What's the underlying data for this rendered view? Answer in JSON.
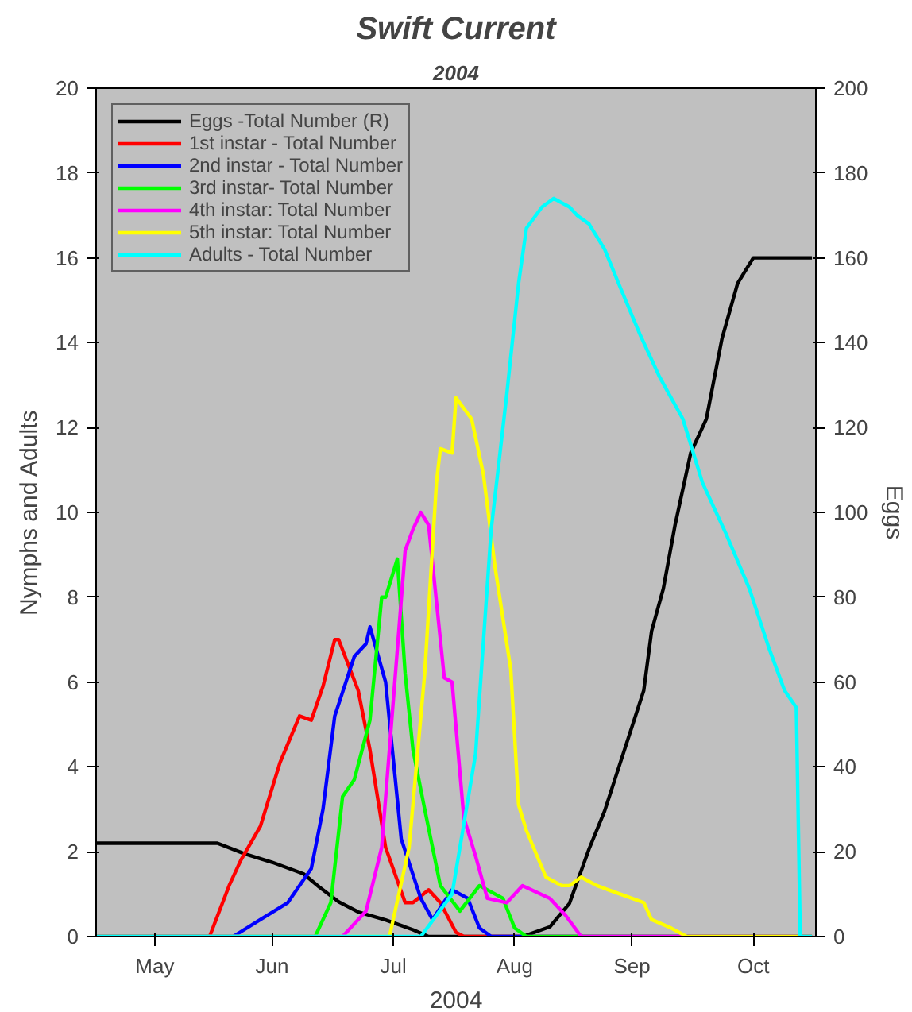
{
  "chart_data": {
    "type": "line",
    "title": "Swift Current",
    "subtitle": "2004",
    "xlabel": "2004",
    "ylabel": "Nymphs and Adults",
    "y2label": "Eggs",
    "xlim": [
      "2004-05-01",
      "2004-11-01"
    ],
    "xticks": [
      {
        "value": "2004-05-16",
        "label": "May"
      },
      {
        "value": "2004-06-15",
        "label": "Jun"
      },
      {
        "value": "2004-07-16",
        "label": "Jul"
      },
      {
        "value": "2004-08-16",
        "label": "Aug"
      },
      {
        "value": "2004-09-15",
        "label": "Sep"
      },
      {
        "value": "2004-10-16",
        "label": "Oct"
      }
    ],
    "ylim": [
      0,
      20
    ],
    "yticks": [
      0,
      2,
      4,
      6,
      8,
      10,
      12,
      14,
      16,
      18,
      20
    ],
    "y2lim": [
      0,
      200
    ],
    "y2ticks": [
      0,
      20,
      40,
      60,
      80,
      100,
      120,
      140,
      160,
      180,
      200
    ],
    "grid": false,
    "legend": "top left",
    "marker": "none",
    "line_style": "solid",
    "series": [
      {
        "name": "Eggs -Total Number (R)",
        "color": "#000000",
        "axis": "y2",
        "x": [
          "2004-05-01",
          "2004-06-01",
          "2004-06-08",
          "2004-06-15",
          "2004-06-23",
          "2004-06-27",
          "2004-07-02",
          "2004-07-07",
          "2004-07-14",
          "2004-07-21",
          "2004-07-25",
          "2004-08-18",
          "2004-08-25",
          "2004-08-30",
          "2004-09-04",
          "2004-09-08",
          "2004-09-12",
          "2004-09-18",
          "2004-09-20",
          "2004-09-23",
          "2004-09-26",
          "2004-09-30",
          "2004-10-04",
          "2004-10-08",
          "2004-10-12",
          "2004-10-16",
          "2004-10-31"
        ],
        "values": [
          22,
          22,
          19.5,
          17.5,
          14.8,
          11.7,
          8.2,
          5.8,
          3.9,
          1.6,
          0,
          0,
          2.3,
          7.8,
          20.6,
          29.6,
          41,
          58,
          72,
          82,
          97,
          114,
          122,
          141,
          154,
          160,
          160
        ]
      },
      {
        "name": "1st instar - Total Number",
        "color": "#ff0000",
        "x": [
          "2004-05-01",
          "2004-05-30",
          "2004-06-04",
          "2004-06-07",
          "2004-06-12",
          "2004-06-17",
          "2004-06-22",
          "2004-06-25",
          "2004-06-28",
          "2004-07-01",
          "2004-07-02",
          "2004-07-07",
          "2004-07-10",
          "2004-07-14",
          "2004-07-19",
          "2004-07-21",
          "2004-07-25",
          "2004-07-28",
          "2004-08-01",
          "2004-08-03",
          "2004-10-31"
        ],
        "values": [
          0,
          0,
          1.2,
          1.8,
          2.6,
          4.1,
          5.2,
          5.1,
          5.9,
          7.0,
          7.0,
          5.8,
          4.4,
          2.1,
          0.8,
          0.8,
          1.1,
          0.8,
          0.1,
          0,
          0
        ]
      },
      {
        "name": "2nd instar - Total Number",
        "color": "#0000ff",
        "x": [
          "2004-05-01",
          "2004-06-05",
          "2004-06-12",
          "2004-06-19",
          "2004-06-25",
          "2004-06-28",
          "2004-07-01",
          "2004-07-06",
          "2004-07-09",
          "2004-07-10",
          "2004-07-14",
          "2004-07-18",
          "2004-07-23",
          "2004-07-26",
          "2004-07-31",
          "2004-08-04",
          "2004-08-07",
          "2004-08-10",
          "2004-10-31"
        ],
        "values": [
          0,
          0,
          0.4,
          0.8,
          1.6,
          3.0,
          5.2,
          6.6,
          6.9,
          7.3,
          6.0,
          2.3,
          0.9,
          0.4,
          1.1,
          0.9,
          0.2,
          0,
          0
        ]
      },
      {
        "name": "3rd instar- Total Number",
        "color": "#00ff00",
        "x": [
          "2004-05-01",
          "2004-06-26",
          "2004-06-30",
          "2004-07-03",
          "2004-07-06",
          "2004-07-10",
          "2004-07-13",
          "2004-07-14",
          "2004-07-17",
          "2004-07-19",
          "2004-07-21",
          "2004-07-24",
          "2004-07-28",
          "2004-08-02",
          "2004-08-07",
          "2004-08-13",
          "2004-08-16",
          "2004-08-19",
          "2004-10-31"
        ],
        "values": [
          0,
          0,
          0.8,
          3.3,
          3.7,
          5.1,
          8.0,
          8.0,
          8.9,
          6.2,
          4.4,
          3.0,
          1.2,
          0.6,
          1.2,
          0.9,
          0.2,
          0,
          0
        ]
      },
      {
        "name": "4th instar: Total Number",
        "color": "#ff00ff",
        "x": [
          "2004-05-01",
          "2004-07-03",
          "2004-07-09",
          "2004-07-13",
          "2004-07-16",
          "2004-07-19",
          "2004-07-21",
          "2004-07-23",
          "2004-07-25",
          "2004-07-29",
          "2004-07-31",
          "2004-08-03",
          "2004-08-06",
          "2004-08-09",
          "2004-08-14",
          "2004-08-18",
          "2004-08-25",
          "2004-08-29",
          "2004-09-02",
          "2004-10-31"
        ],
        "values": [
          0,
          0,
          0.6,
          2.1,
          5.6,
          9.1,
          9.6,
          10.0,
          9.7,
          6.1,
          6.0,
          2.8,
          1.9,
          0.9,
          0.8,
          1.2,
          0.9,
          0.5,
          0,
          0
        ]
      },
      {
        "name": "5th instar: Total Number",
        "color": "#ffff00",
        "x": [
          "2004-05-01",
          "2004-07-15",
          "2004-07-20",
          "2004-07-24",
          "2004-07-27",
          "2004-07-28",
          "2004-07-31",
          "2004-08-01",
          "2004-08-05",
          "2004-08-08",
          "2004-08-11",
          "2004-08-15",
          "2004-08-17",
          "2004-08-19",
          "2004-08-24",
          "2004-08-28",
          "2004-08-30",
          "2004-09-02",
          "2004-09-06",
          "2004-09-12",
          "2004-09-18",
          "2004-09-20",
          "2004-09-25",
          "2004-09-29",
          "2004-10-31"
        ],
        "values": [
          0,
          0,
          2.1,
          6.2,
          10.7,
          11.5,
          11.4,
          12.7,
          12.2,
          10.9,
          8.7,
          6.3,
          3.1,
          2.5,
          1.4,
          1.2,
          1.2,
          1.4,
          1.2,
          1.0,
          0.8,
          0.4,
          0.2,
          0,
          0
        ]
      },
      {
        "name": "Adults - Total Number",
        "color": "#00ffff",
        "x": [
          "2004-05-01",
          "2004-07-23",
          "2004-07-31",
          "2004-08-06",
          "2004-08-10",
          "2004-08-14",
          "2004-08-17",
          "2004-08-19",
          "2004-08-23",
          "2004-08-26",
          "2004-08-30",
          "2004-09-01",
          "2004-09-04",
          "2004-09-08",
          "2004-09-12",
          "2004-09-17",
          "2004-09-22",
          "2004-09-28",
          "2004-10-03",
          "2004-10-09",
          "2004-10-15",
          "2004-10-20",
          "2004-10-24",
          "2004-10-27",
          "2004-10-28",
          "2004-10-31"
        ],
        "values": [
          0,
          0,
          1.0,
          4.3,
          9.6,
          12.8,
          15.4,
          16.7,
          17.2,
          17.4,
          17.2,
          17.0,
          16.8,
          16.2,
          15.3,
          14.2,
          13.2,
          12.2,
          10.7,
          9.5,
          8.2,
          6.8,
          5.8,
          5.4,
          0,
          0
        ]
      }
    ]
  }
}
